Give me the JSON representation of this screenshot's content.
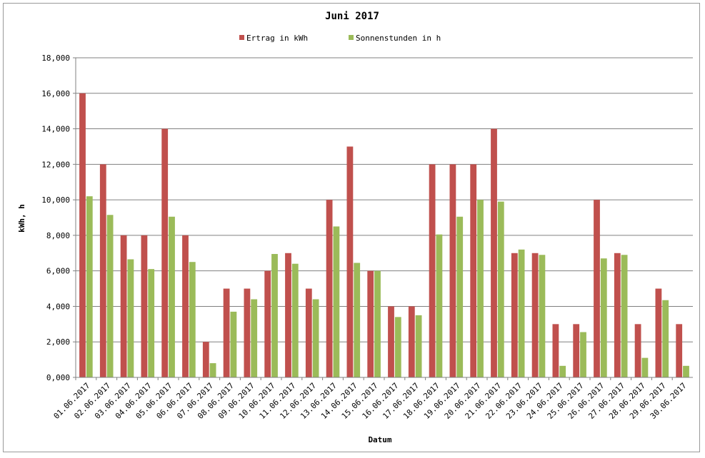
{
  "chart_data": {
    "type": "bar",
    "title": "Juni 2017",
    "xlabel": "Datum",
    "ylabel": "kWh, h",
    "ylim": [
      0,
      18
    ],
    "y_ticks": [
      "0,000",
      "2,000",
      "4,000",
      "6,000",
      "8,000",
      "10,000",
      "12,000",
      "14,000",
      "16,000",
      "18,000"
    ],
    "grid": true,
    "legend_position": "top",
    "categories": [
      "01.06.2017",
      "02.06.2017",
      "03.06.2017",
      "04.06.2017",
      "05.06.2017",
      "06.06.2017",
      "07.06.2017",
      "08.06.2017",
      "09.06.2017",
      "10.06.2017",
      "11.06.2017",
      "12.06.2017",
      "13.06.2017",
      "14.06.2017",
      "15.06.2017",
      "16.06.2017",
      "17.06.2017",
      "18.06.2017",
      "19.06.2017",
      "20.06.2017",
      "21.06.2017",
      "22.06.2017",
      "23.06.2017",
      "24.06.2017",
      "25.06.2017",
      "26.06.2017",
      "27.06.2017",
      "28.06.2017",
      "29.06.2017",
      "30.06.2017"
    ],
    "series": [
      {
        "name": "Ertrag in kWh",
        "color": "#c0504d",
        "values": [
          16,
          12,
          8,
          8,
          14,
          8,
          2,
          5,
          5,
          6,
          7,
          5,
          10,
          13,
          6,
          4,
          4,
          12,
          12,
          12,
          14,
          7,
          7,
          3,
          3,
          10,
          7,
          3,
          5,
          3
        ]
      },
      {
        "name": "Sonnenstunden in h",
        "color": "#9bbb59",
        "values": [
          10.2,
          9.15,
          6.65,
          6.1,
          9.05,
          6.5,
          0.8,
          3.7,
          4.4,
          6.95,
          6.4,
          4.4,
          8.5,
          6.45,
          6.0,
          3.4,
          3.5,
          8.05,
          9.05,
          10.0,
          9.9,
          7.2,
          6.9,
          0.65,
          2.55,
          6.7,
          6.9,
          1.1,
          4.35,
          0.65
        ]
      }
    ]
  },
  "colors": {
    "gridline": "#808080",
    "plot_border": "#808080"
  }
}
